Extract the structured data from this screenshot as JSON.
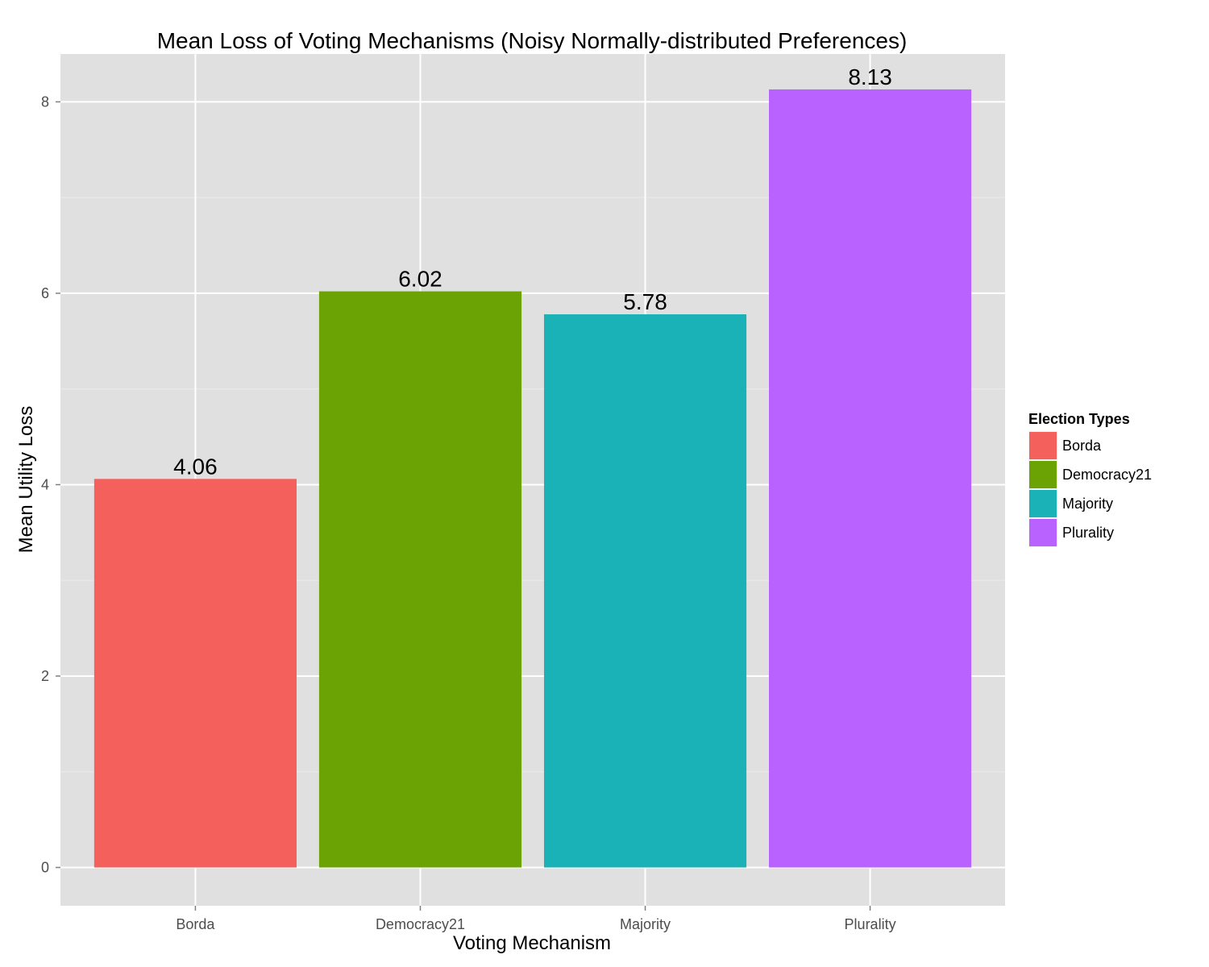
{
  "chart_data": {
    "type": "bar",
    "title": "Mean Loss of Voting Mechanisms (Noisy Normally-distributed Preferences)",
    "xlabel": "Voting Mechanism",
    "ylabel": "Mean Utility Loss",
    "categories": [
      "Borda",
      "Democracy21",
      "Majority",
      "Plurality"
    ],
    "values": [
      4.06,
      6.02,
      5.78,
      8.13
    ],
    "value_labels": [
      "4.06",
      "6.02",
      "5.78",
      "8.13"
    ],
    "colors": [
      "#F8766D",
      "#7CAE00",
      "#00BFC4",
      "#C77CFF"
    ],
    "bar_colors_rendered": [
      "#F4615C",
      "#6CA304",
      "#1AB2B7",
      "#B962FF"
    ],
    "ylim": [
      -0.4,
      8.5
    ],
    "yticks": [
      0,
      2,
      4,
      6,
      8
    ],
    "ytick_labels": [
      "0",
      "2",
      "4",
      "6",
      "8"
    ],
    "grid": true,
    "panel_background": "#E0E0E0",
    "legend": {
      "title": "Election Types",
      "position": "right",
      "items": [
        "Borda",
        "Democracy21",
        "Majority",
        "Plurality"
      ]
    }
  }
}
